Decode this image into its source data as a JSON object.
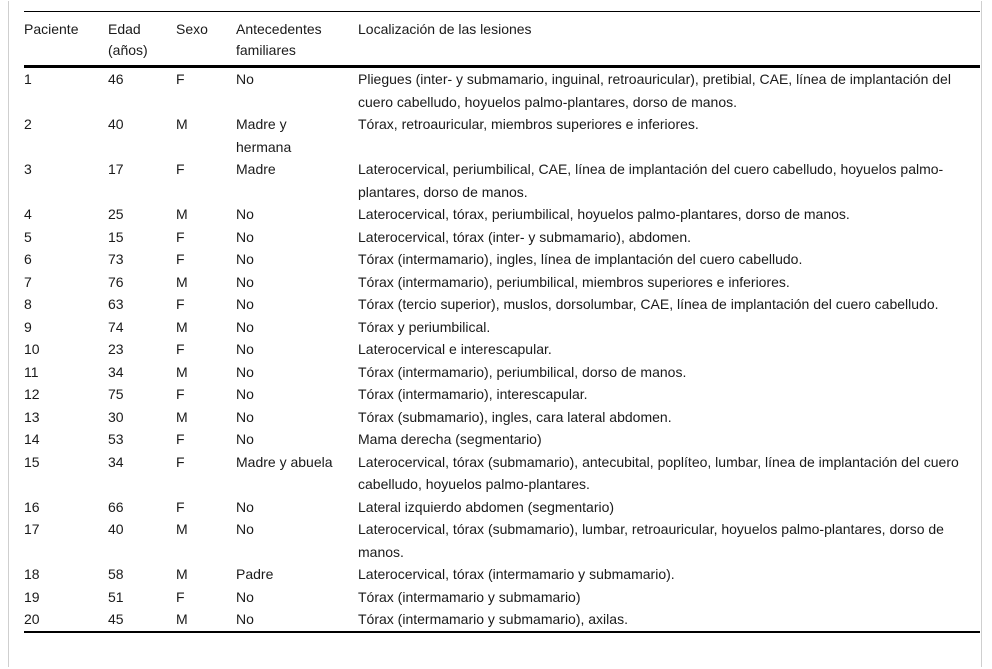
{
  "document": {
    "language": "es",
    "kind": "journal-article-table"
  },
  "colors": {
    "text": "#1a1a1a",
    "rule": "#000000",
    "frame_border": "#cfcfcf",
    "background": "#ffffff"
  },
  "table": {
    "columns": [
      "Paciente",
      "Edad (años)",
      "Sexo",
      "Antecedentes familiares",
      "Localización de las lesiones"
    ],
    "rows": [
      {
        "paciente": "1",
        "edad": "46",
        "sexo": "F",
        "antecedentes": "No",
        "localizacion": "Pliegues (inter- y submamario, inguinal, retroauricular), pretibial, CAE, línea de implantación del cuero cabelludo, hoyuelos palmo-plantares, dorso de manos."
      },
      {
        "paciente": "2",
        "edad": "40",
        "sexo": "M",
        "antecedentes": "Madre y hermana",
        "localizacion": "Tórax, retroauricular, miembros superiores e inferiores."
      },
      {
        "paciente": "3",
        "edad": "17",
        "sexo": "F",
        "antecedentes": "Madre",
        "localizacion": "Laterocervical, periumbilical, CAE, línea de implantación del cuero cabelludo, hoyuelos palmo-plantares, dorso de manos."
      },
      {
        "paciente": "4",
        "edad": "25",
        "sexo": "M",
        "antecedentes": "No",
        "localizacion": "Laterocervical, tórax, periumbilical, hoyuelos palmo-plantares, dorso de manos."
      },
      {
        "paciente": "5",
        "edad": "15",
        "sexo": "F",
        "antecedentes": "No",
        "localizacion": "Laterocervical, tórax (inter- y submamario), abdomen."
      },
      {
        "paciente": "6",
        "edad": "73",
        "sexo": "F",
        "antecedentes": "No",
        "localizacion": "Tórax (intermamario), ingles, línea de implantación del cuero cabelludo."
      },
      {
        "paciente": "7",
        "edad": "76",
        "sexo": "M",
        "antecedentes": "No",
        "localizacion": "Tórax (intermamario), periumbilical, miembros superiores e inferiores."
      },
      {
        "paciente": "8",
        "edad": "63",
        "sexo": "F",
        "antecedentes": "No",
        "localizacion": "Tórax (tercio superior), muslos, dorsolumbar, CAE, línea de implantación del cuero cabelludo."
      },
      {
        "paciente": "9",
        "edad": "74",
        "sexo": "M",
        "antecedentes": "No",
        "localizacion": "Tórax y periumbilical."
      },
      {
        "paciente": "10",
        "edad": "23",
        "sexo": "F",
        "antecedentes": "No",
        "localizacion": "Laterocervical e interescapular."
      },
      {
        "paciente": "11",
        "edad": "34",
        "sexo": "M",
        "antecedentes": "No",
        "localizacion": "Tórax (intermamario), periumbilical, dorso de manos."
      },
      {
        "paciente": "12",
        "edad": "75",
        "sexo": "F",
        "antecedentes": "No",
        "localizacion": "Tórax (intermamario), interescapular."
      },
      {
        "paciente": "13",
        "edad": "30",
        "sexo": "M",
        "antecedentes": "No",
        "localizacion": "Tórax (submamario), ingles, cara lateral abdomen."
      },
      {
        "paciente": "14",
        "edad": "53",
        "sexo": "F",
        "antecedentes": "No",
        "localizacion": "Mama derecha (segmentario)"
      },
      {
        "paciente": "15",
        "edad": "34",
        "sexo": "F",
        "antecedentes": "Madre y abuela",
        "localizacion": "Laterocervical, tórax (submamario), antecubital, poplíteo, lumbar, línea de implantación del cuero cabelludo, hoyuelos palmo-plantares."
      },
      {
        "paciente": "16",
        "edad": "66",
        "sexo": "F",
        "antecedentes": "No",
        "localizacion": "Lateral izquierdo abdomen (segmentario)"
      },
      {
        "paciente": "17",
        "edad": "40",
        "sexo": "M",
        "antecedentes": "No",
        "localizacion": "Laterocervical, tórax (submamario), lumbar, retroauricular, hoyuelos palmo-plantares, dorso de manos."
      },
      {
        "paciente": "18",
        "edad": "58",
        "sexo": "M",
        "antecedentes": "Padre",
        "localizacion": "Laterocervical, tórax (intermamario y submamario)."
      },
      {
        "paciente": "19",
        "edad": "51",
        "sexo": "F",
        "antecedentes": "No",
        "localizacion": "Tórax (intermamario y submamario)"
      },
      {
        "paciente": "20",
        "edad": "45",
        "sexo": "M",
        "antecedentes": "No",
        "localizacion": "Tórax (intermamario y submamario), axilas."
      }
    ]
  }
}
